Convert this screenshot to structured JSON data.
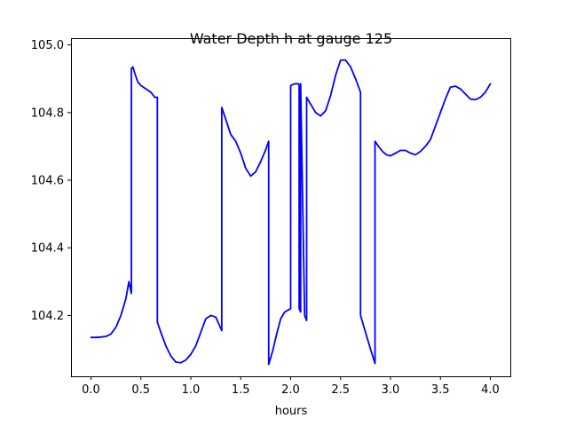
{
  "chart_data": {
    "type": "line",
    "title": "Water Depth h at gauge 125",
    "xlabel": "hours",
    "ylabel": "",
    "xlim": [
      -0.2,
      4.2
    ],
    "ylim": [
      104.02,
      105.02
    ],
    "xticks": [
      0.0,
      0.5,
      1.0,
      1.5,
      2.0,
      2.5,
      3.0,
      3.5,
      4.0
    ],
    "xtick_labels": [
      "0.0",
      "0.5",
      "1.0",
      "1.5",
      "2.0",
      "2.5",
      "3.0",
      "3.5",
      "4.0"
    ],
    "yticks": [
      104.2,
      104.4,
      104.6,
      104.8,
      105.0
    ],
    "ytick_labels": [
      "104.2",
      "104.4",
      "104.6",
      "104.8",
      "105.0"
    ],
    "grid": false,
    "series": [
      {
        "color": "#0000ff",
        "x": [
          0.0,
          0.05,
          0.1,
          0.15,
          0.2,
          0.25,
          0.3,
          0.35,
          0.38,
          0.405,
          0.405,
          0.42,
          0.44,
          0.47,
          0.5,
          0.55,
          0.6,
          0.64,
          0.665,
          0.665,
          0.7,
          0.75,
          0.8,
          0.85,
          0.9,
          0.95,
          1.0,
          1.05,
          1.1,
          1.15,
          1.2,
          1.25,
          1.28,
          1.31,
          1.31,
          1.35,
          1.4,
          1.45,
          1.5,
          1.55,
          1.6,
          1.65,
          1.7,
          1.75,
          1.78,
          1.78,
          1.82,
          1.86,
          1.9,
          1.94,
          1.97,
          2.0,
          2.0,
          2.04,
          2.08,
          2.085,
          2.085,
          2.1,
          2.1,
          2.14,
          2.16,
          2.16,
          2.2,
          2.25,
          2.3,
          2.35,
          2.4,
          2.45,
          2.5,
          2.55,
          2.6,
          2.65,
          2.7,
          2.7,
          2.75,
          2.8,
          2.845,
          2.845,
          2.88,
          2.92,
          2.96,
          3.0,
          3.05,
          3.1,
          3.15,
          3.2,
          3.25,
          3.3,
          3.35,
          3.4,
          3.45,
          3.5,
          3.55,
          3.6,
          3.65,
          3.7,
          3.75,
          3.8,
          3.85,
          3.9,
          3.95,
          4.0
        ],
        "y": [
          104.135,
          104.135,
          104.136,
          104.138,
          104.145,
          104.165,
          104.2,
          104.25,
          104.3,
          104.265,
          104.93,
          104.935,
          104.915,
          104.89,
          104.88,
          104.87,
          104.86,
          104.845,
          104.845,
          104.18,
          104.15,
          104.11,
          104.08,
          104.062,
          104.06,
          104.068,
          104.085,
          104.11,
          104.15,
          104.19,
          104.2,
          104.195,
          104.175,
          104.155,
          104.815,
          104.78,
          104.735,
          104.715,
          104.68,
          104.635,
          104.612,
          104.625,
          104.655,
          104.69,
          104.715,
          104.055,
          104.095,
          104.145,
          104.19,
          104.21,
          104.215,
          104.22,
          104.88,
          104.885,
          104.885,
          104.88,
          104.22,
          104.21,
          104.885,
          104.2,
          104.185,
          104.845,
          104.825,
          104.8,
          104.79,
          104.805,
          104.85,
          104.91,
          104.955,
          104.955,
          104.935,
          104.9,
          104.86,
          104.2,
          104.15,
          104.1,
          104.058,
          104.715,
          104.7,
          104.685,
          104.675,
          104.672,
          104.68,
          104.688,
          104.688,
          104.68,
          104.675,
          104.685,
          104.7,
          104.72,
          104.76,
          104.8,
          104.84,
          104.875,
          104.878,
          104.87,
          104.855,
          104.84,
          104.838,
          104.845,
          104.86,
          104.885
        ]
      }
    ]
  }
}
